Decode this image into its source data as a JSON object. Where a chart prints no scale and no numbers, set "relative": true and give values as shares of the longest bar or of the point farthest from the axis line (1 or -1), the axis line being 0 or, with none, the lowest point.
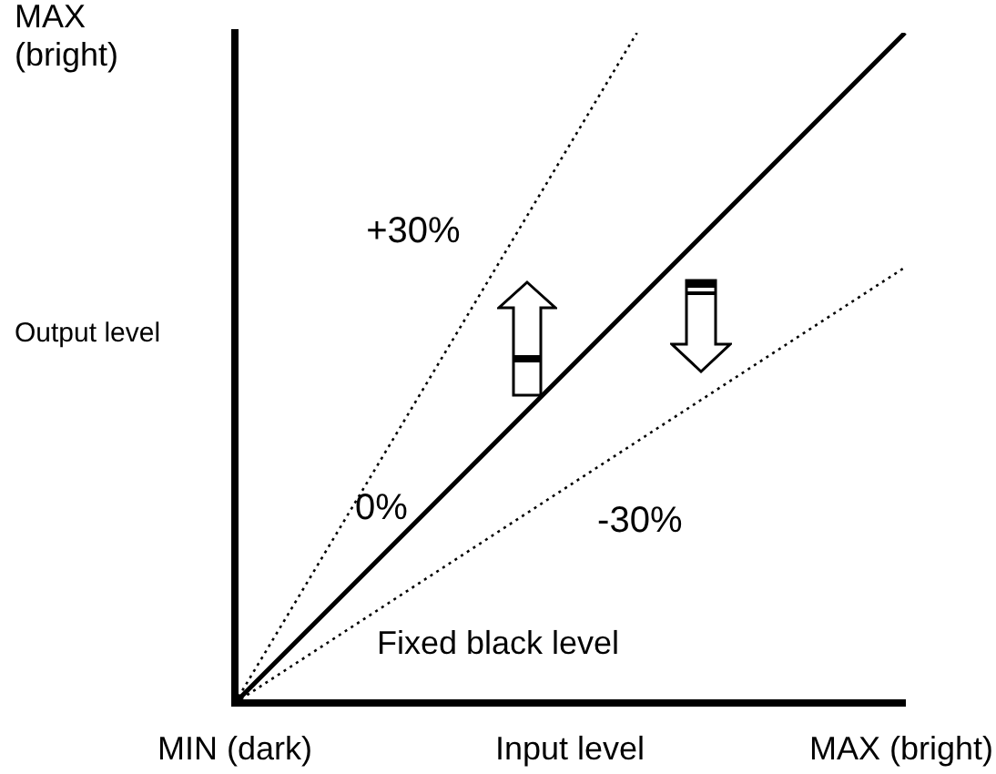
{
  "chart_data": {
    "type": "line",
    "relative": true,
    "xlabel": "Input level",
    "ylabel": "Output level",
    "categories": [
      null,
      null,
      null,
      null,
      null,
      null,
      null,
      null,
      null,
      null,
      null
    ],
    "series": [
      {
        "name": "+30%",
        "color": "#000000",
        "values": [
          0,
          null,
          null,
          null,
          null,
          null,
          1,
          null,
          null,
          null,
          null
        ],
        "line_style": "dotted"
      },
      {
        "name": "0%",
        "color": "#000000",
        "values": [
          0,
          null,
          null,
          null,
          null,
          null,
          null,
          null,
          null,
          null,
          1
        ],
        "line_style": "solid"
      },
      {
        "name": "-30%",
        "color": "#000000",
        "values": [
          0,
          null,
          null,
          null,
          null,
          null,
          null,
          null,
          null,
          null,
          0.65
        ],
        "line_style": "dotted"
      }
    ],
    "annotations": [
      "MAX (bright)",
      "MIN (dark)",
      "MAX (bright)",
      "Fixed black level"
    ],
    "legend": false,
    "marker": "none"
  }
}
